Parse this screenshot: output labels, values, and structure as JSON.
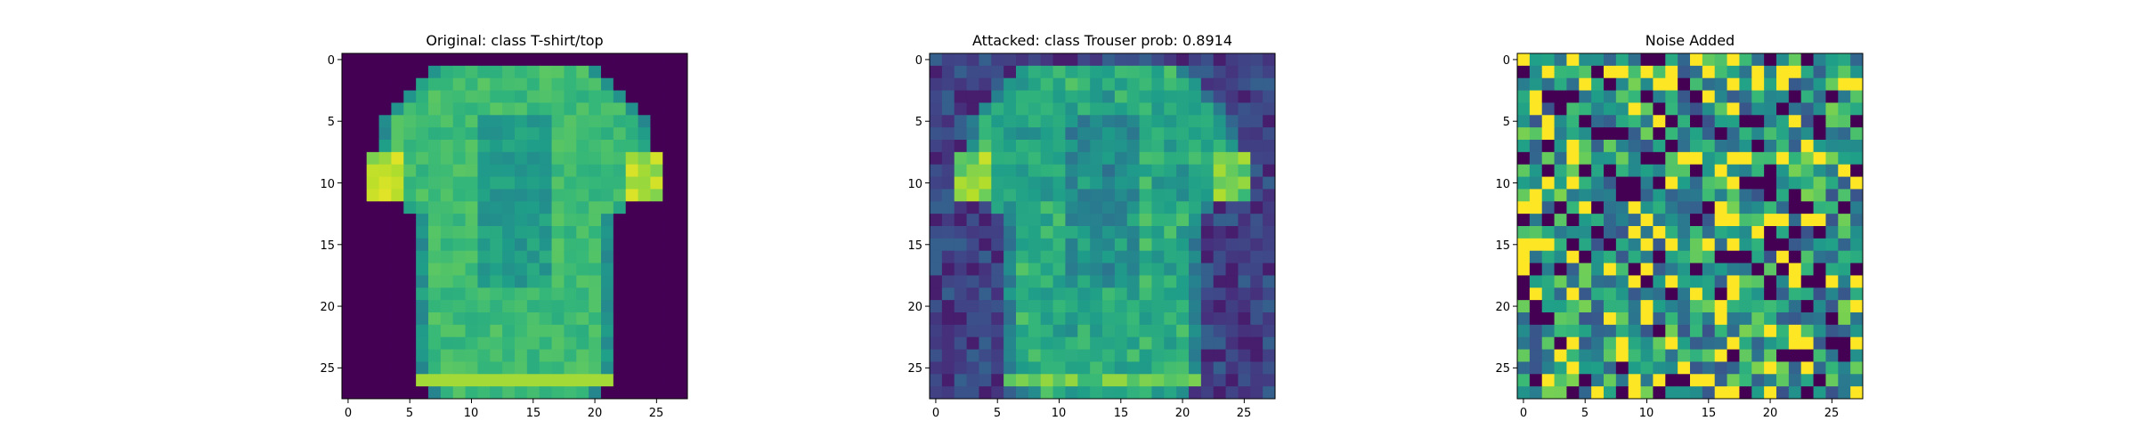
{
  "figure": {
    "background": "#ffffff",
    "colormap": "viridis"
  },
  "chart_data": [
    {
      "type": "heatmap",
      "title": "Original: class T-shirt/top",
      "xticks": [
        0,
        5,
        10,
        15,
        20,
        25
      ],
      "yticks": [
        0,
        5,
        10,
        15,
        20,
        25
      ],
      "xlim": [
        -0.5,
        27.5
      ],
      "ylim": [
        27.5,
        -0.5
      ],
      "grid": false,
      "image_size": [
        28,
        28
      ],
      "description": "28x28 grayscale image of a T-shirt/top (Fashion-MNIST)"
    },
    {
      "type": "heatmap",
      "title": "Attacked: class Trouser prob: 0.8914",
      "xticks": [
        0,
        5,
        10,
        15,
        20,
        25
      ],
      "yticks": [
        0,
        5,
        10,
        15,
        20,
        25
      ],
      "xlim": [
        -0.5,
        27.5
      ],
      "ylim": [
        27.5,
        -0.5
      ],
      "grid": false,
      "image_size": [
        28,
        28
      ],
      "predicted_class": "Trouser",
      "probability": 0.8914
    },
    {
      "type": "heatmap",
      "title": "Noise Added",
      "xticks": [
        0,
        5,
        10,
        15,
        20,
        25
      ],
      "yticks": [
        0,
        5,
        10,
        15,
        20,
        25
      ],
      "xlim": [
        -0.5,
        27.5
      ],
      "ylim": [
        27.5,
        -0.5
      ],
      "grid": false,
      "image_size": [
        28,
        28
      ]
    }
  ]
}
